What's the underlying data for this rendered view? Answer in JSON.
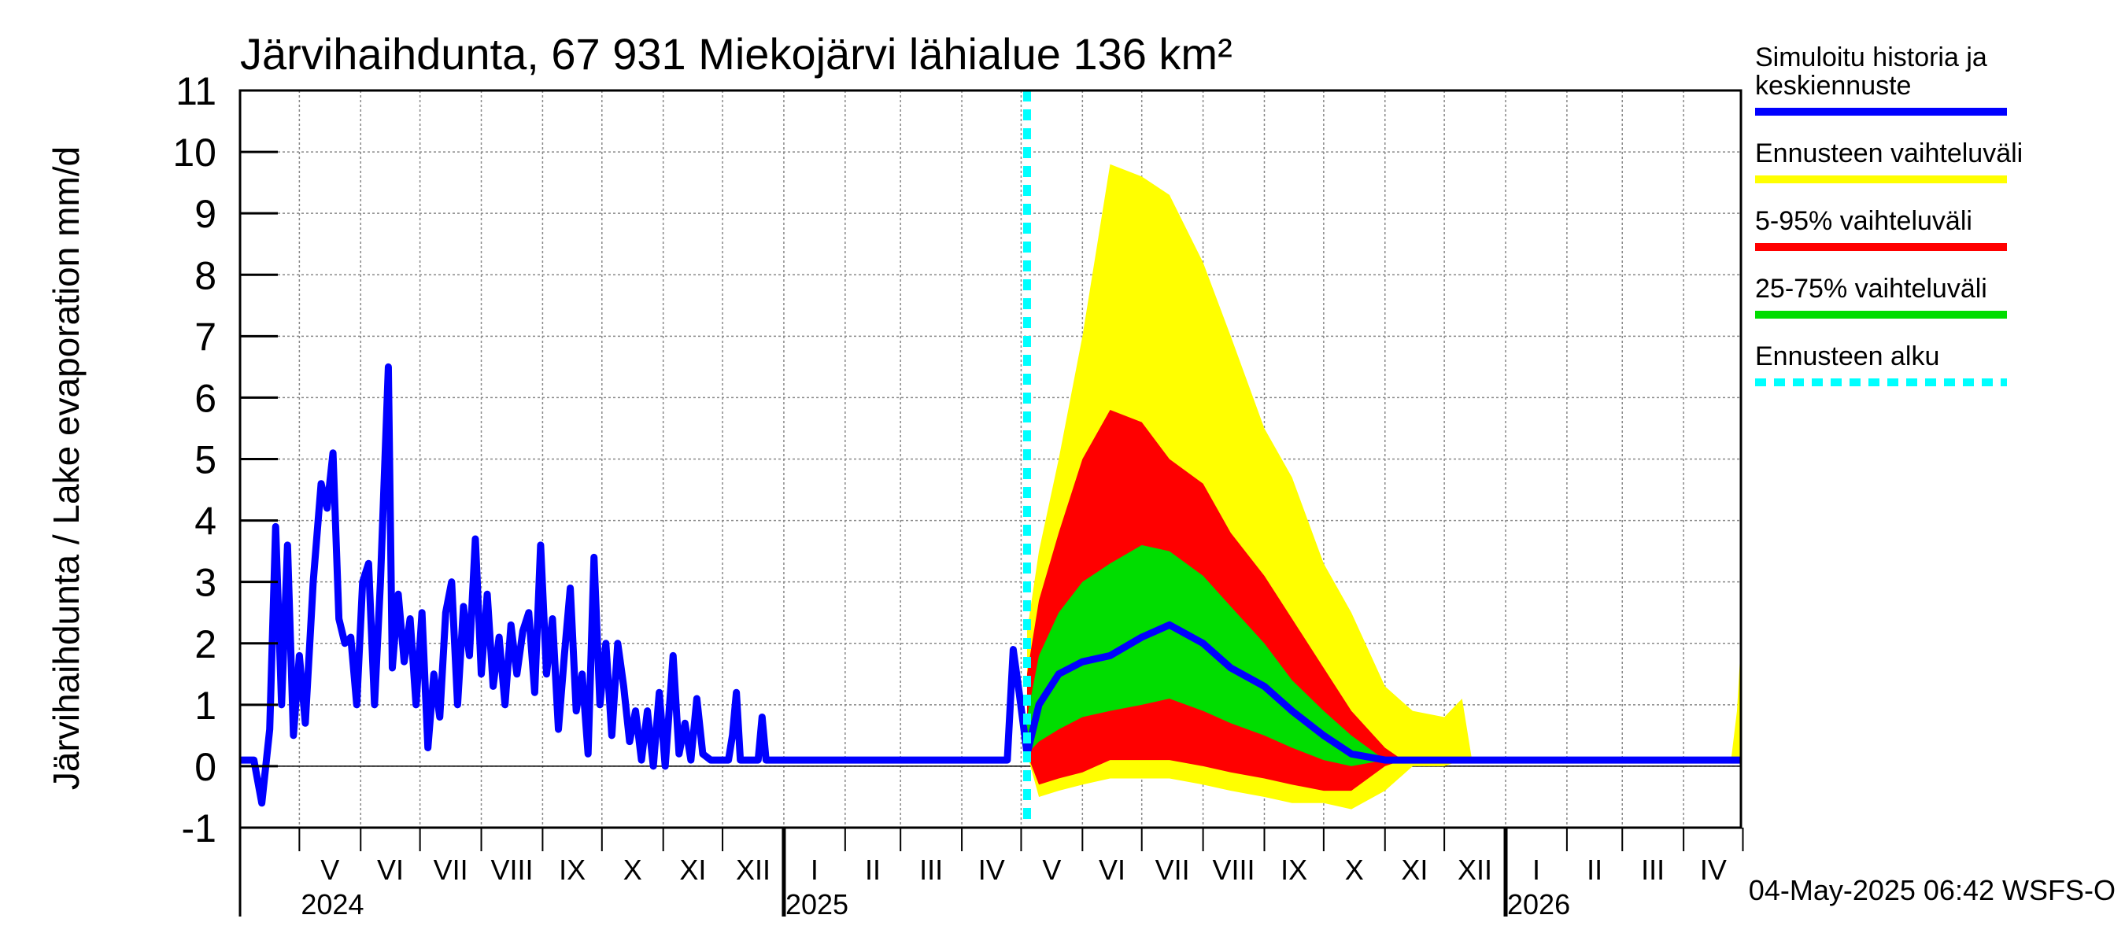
{
  "chart_data": {
    "type": "area",
    "title": "Järvihaihdunta, 67 931 Miekojärvi lähialue 136 km²",
    "ylabel": "Järvihaihdunta / Lake evaporation   mm/d",
    "ylim": [
      -1,
      11
    ],
    "yticks": [
      -1,
      0,
      1,
      2,
      3,
      4,
      5,
      6,
      7,
      8,
      9,
      10,
      11
    ],
    "grid": true,
    "legend_position": "right",
    "x_start": "2024-04-01",
    "x_end": "2026-04-30",
    "forecast_start": "2025-05-04",
    "month_labels": [
      {
        "label": "V",
        "month": "2024-05"
      },
      {
        "label": "VI",
        "month": "2024-06"
      },
      {
        "label": "VII",
        "month": "2024-07"
      },
      {
        "label": "VIII",
        "month": "2024-08"
      },
      {
        "label": "IX",
        "month": "2024-09"
      },
      {
        "label": "X",
        "month": "2024-10"
      },
      {
        "label": "XI",
        "month": "2024-11"
      },
      {
        "label": "XII",
        "month": "2024-12"
      },
      {
        "label": "I",
        "month": "2025-01"
      },
      {
        "label": "II",
        "month": "2025-02"
      },
      {
        "label": "III",
        "month": "2025-03"
      },
      {
        "label": "IV",
        "month": "2025-04"
      },
      {
        "label": "V",
        "month": "2025-05"
      },
      {
        "label": "VI",
        "month": "2025-06"
      },
      {
        "label": "VII",
        "month": "2025-07"
      },
      {
        "label": "VIII",
        "month": "2025-08"
      },
      {
        "label": "IX",
        "month": "2025-09"
      },
      {
        "label": "X",
        "month": "2025-10"
      },
      {
        "label": "XI",
        "month": "2025-11"
      },
      {
        "label": "XII",
        "month": "2025-12"
      },
      {
        "label": "I",
        "month": "2026-01"
      },
      {
        "label": "II",
        "month": "2026-02"
      },
      {
        "label": "III",
        "month": "2026-03"
      },
      {
        "label": "IV",
        "month": "2026-04"
      }
    ],
    "year_labels": [
      {
        "label": "2024",
        "date": "2024-05-01"
      },
      {
        "label": "2025",
        "date": "2025-01-01"
      },
      {
        "label": "2026",
        "date": "2026-01-01"
      }
    ],
    "series": [
      {
        "name": "Simuloitu historia ja keskiennuste",
        "color": "#0000ff",
        "points": [
          [
            "2024-04-01",
            0.1
          ],
          [
            "2024-04-08",
            0.1
          ],
          [
            "2024-04-12",
            -0.6
          ],
          [
            "2024-04-16",
            0.6
          ],
          [
            "2024-04-19",
            3.9
          ],
          [
            "2024-04-22",
            1.0
          ],
          [
            "2024-04-25",
            3.6
          ],
          [
            "2024-04-28",
            0.5
          ],
          [
            "2024-05-01",
            1.8
          ],
          [
            "2024-05-04",
            0.7
          ],
          [
            "2024-05-08",
            3.0
          ],
          [
            "2024-05-12",
            4.6
          ],
          [
            "2024-05-15",
            4.2
          ],
          [
            "2024-05-18",
            5.1
          ],
          [
            "2024-05-21",
            2.4
          ],
          [
            "2024-05-24",
            2.0
          ],
          [
            "2024-05-27",
            2.1
          ],
          [
            "2024-05-30",
            1.0
          ],
          [
            "2024-06-02",
            3.0
          ],
          [
            "2024-06-05",
            3.3
          ],
          [
            "2024-06-08",
            1.0
          ],
          [
            "2024-06-11",
            3.0
          ],
          [
            "2024-06-15",
            6.5
          ],
          [
            "2024-06-17",
            1.6
          ],
          [
            "2024-06-20",
            2.8
          ],
          [
            "2024-06-23",
            1.7
          ],
          [
            "2024-06-26",
            2.4
          ],
          [
            "2024-06-29",
            1.0
          ],
          [
            "2024-07-02",
            2.5
          ],
          [
            "2024-07-05",
            0.3
          ],
          [
            "2024-07-08",
            1.5
          ],
          [
            "2024-07-11",
            0.8
          ],
          [
            "2024-07-14",
            2.5
          ],
          [
            "2024-07-17",
            3.0
          ],
          [
            "2024-07-20",
            1.0
          ],
          [
            "2024-07-23",
            2.6
          ],
          [
            "2024-07-26",
            1.8
          ],
          [
            "2024-07-29",
            3.7
          ],
          [
            "2024-08-01",
            1.5
          ],
          [
            "2024-08-04",
            2.8
          ],
          [
            "2024-08-07",
            1.3
          ],
          [
            "2024-08-10",
            2.1
          ],
          [
            "2024-08-13",
            1.0
          ],
          [
            "2024-08-16",
            2.3
          ],
          [
            "2024-08-19",
            1.5
          ],
          [
            "2024-08-22",
            2.2
          ],
          [
            "2024-08-25",
            2.5
          ],
          [
            "2024-08-28",
            1.2
          ],
          [
            "2024-08-31",
            3.6
          ],
          [
            "2024-09-03",
            1.5
          ],
          [
            "2024-09-06",
            2.4
          ],
          [
            "2024-09-09",
            0.6
          ],
          [
            "2024-09-12",
            1.8
          ],
          [
            "2024-09-15",
            2.9
          ],
          [
            "2024-09-18",
            0.9
          ],
          [
            "2024-09-21",
            1.5
          ],
          [
            "2024-09-24",
            0.2
          ],
          [
            "2024-09-27",
            3.4
          ],
          [
            "2024-09-30",
            1.0
          ],
          [
            "2024-10-03",
            2.0
          ],
          [
            "2024-10-06",
            0.5
          ],
          [
            "2024-10-09",
            2.0
          ],
          [
            "2024-10-12",
            1.3
          ],
          [
            "2024-10-15",
            0.4
          ],
          [
            "2024-10-18",
            0.9
          ],
          [
            "2024-10-21",
            0.1
          ],
          [
            "2024-10-24",
            0.9
          ],
          [
            "2024-10-27",
            0.0
          ],
          [
            "2024-10-30",
            1.2
          ],
          [
            "2024-11-02",
            0.0
          ],
          [
            "2024-11-06",
            1.8
          ],
          [
            "2024-11-09",
            0.2
          ],
          [
            "2024-11-12",
            0.7
          ],
          [
            "2024-11-15",
            0.1
          ],
          [
            "2024-11-18",
            1.1
          ],
          [
            "2024-11-21",
            0.2
          ],
          [
            "2024-11-25",
            0.1
          ],
          [
            "2024-12-04",
            0.1
          ],
          [
            "2024-12-06",
            0.5
          ],
          [
            "2024-12-08",
            1.2
          ],
          [
            "2024-12-10",
            0.1
          ],
          [
            "2024-12-19",
            0.1
          ],
          [
            "2024-12-21",
            0.8
          ],
          [
            "2024-12-23",
            0.1
          ],
          [
            "2025-04-24",
            0.1
          ],
          [
            "2025-04-27",
            1.9
          ],
          [
            "2025-04-30",
            1.2
          ],
          [
            "2025-05-04",
            0.2
          ],
          [
            "2025-05-10",
            1.0
          ],
          [
            "2025-05-20",
            1.5
          ],
          [
            "2025-06-01",
            1.7
          ],
          [
            "2025-06-15",
            1.8
          ],
          [
            "2025-07-01",
            2.1
          ],
          [
            "2025-07-15",
            2.3
          ],
          [
            "2025-08-01",
            2.0
          ],
          [
            "2025-08-15",
            1.6
          ],
          [
            "2025-09-01",
            1.3
          ],
          [
            "2025-09-15",
            0.9
          ],
          [
            "2025-10-01",
            0.5
          ],
          [
            "2025-10-15",
            0.2
          ],
          [
            "2025-11-01",
            0.1
          ],
          [
            "2026-04-30",
            0.1
          ]
        ]
      },
      {
        "name": "Ennusteen vaihteluväli",
        "color": "#ffff00",
        "band": [
          [
            "2025-05-04",
            0.2,
            2.2
          ],
          [
            "2025-05-10",
            -0.5,
            3.5
          ],
          [
            "2025-05-20",
            -0.4,
            5.0
          ],
          [
            "2025-06-01",
            -0.3,
            7.0
          ],
          [
            "2025-06-15",
            -0.2,
            9.8
          ],
          [
            "2025-07-01",
            -0.2,
            9.6
          ],
          [
            "2025-07-15",
            -0.2,
            9.3
          ],
          [
            "2025-08-01",
            -0.3,
            8.2
          ],
          [
            "2025-08-15",
            -0.4,
            7.0
          ],
          [
            "2025-09-01",
            -0.5,
            5.5
          ],
          [
            "2025-09-15",
            -0.6,
            4.7
          ],
          [
            "2025-10-01",
            -0.6,
            3.3
          ],
          [
            "2025-10-15",
            -0.7,
            2.5
          ],
          [
            "2025-11-01",
            -0.4,
            1.3
          ],
          [
            "2025-11-15",
            0.0,
            0.9
          ],
          [
            "2025-12-01",
            0.0,
            0.8
          ],
          [
            "2025-12-10",
            0.1,
            1.1
          ],
          [
            "2025-12-15",
            0.1,
            0.1
          ],
          [
            "2026-04-25",
            0.1,
            0.1
          ],
          [
            "2026-04-28",
            0.1,
            0.9
          ],
          [
            "2026-04-30",
            0.1,
            2.0
          ]
        ]
      },
      {
        "name": "5-95% vaihteluväli",
        "color": "#ff0000",
        "band": [
          [
            "2025-05-04",
            0.2,
            1.5
          ],
          [
            "2025-05-10",
            -0.3,
            2.7
          ],
          [
            "2025-05-20",
            -0.2,
            3.8
          ],
          [
            "2025-06-01",
            -0.1,
            5.0
          ],
          [
            "2025-06-15",
            0.1,
            5.8
          ],
          [
            "2025-07-01",
            0.1,
            5.6
          ],
          [
            "2025-07-15",
            0.1,
            5.0
          ],
          [
            "2025-08-01",
            0.0,
            4.6
          ],
          [
            "2025-08-15",
            -0.1,
            3.8
          ],
          [
            "2025-09-01",
            -0.2,
            3.1
          ],
          [
            "2025-09-15",
            -0.3,
            2.4
          ],
          [
            "2025-10-01",
            -0.4,
            1.6
          ],
          [
            "2025-10-15",
            -0.4,
            0.9
          ],
          [
            "2025-11-01",
            0.0,
            0.3
          ],
          [
            "2025-11-10",
            0.1,
            0.1
          ]
        ]
      },
      {
        "name": "25-75% vaihteluväli",
        "color": "#00dd00",
        "band": [
          [
            "2025-05-04",
            0.2,
            0.8
          ],
          [
            "2025-05-10",
            0.4,
            1.8
          ],
          [
            "2025-05-20",
            0.6,
            2.5
          ],
          [
            "2025-06-01",
            0.8,
            3.0
          ],
          [
            "2025-06-15",
            0.9,
            3.3
          ],
          [
            "2025-07-01",
            1.0,
            3.6
          ],
          [
            "2025-07-15",
            1.1,
            3.5
          ],
          [
            "2025-08-01",
            0.9,
            3.1
          ],
          [
            "2025-08-15",
            0.7,
            2.6
          ],
          [
            "2025-09-01",
            0.5,
            2.0
          ],
          [
            "2025-09-15",
            0.3,
            1.4
          ],
          [
            "2025-10-01",
            0.1,
            0.9
          ],
          [
            "2025-10-15",
            0.0,
            0.5
          ],
          [
            "2025-11-01",
            0.1,
            0.1
          ]
        ]
      }
    ],
    "legend": [
      {
        "name": "Simuloitu historia ja keskiennuste",
        "lines": [
          "Simuloitu historia ja",
          "keskiennuste"
        ],
        "color": "#0000ff",
        "style": "solid"
      },
      {
        "name": "Ennusteen vaihteluväli",
        "lines": [
          "Ennusteen vaihteluväli"
        ],
        "color": "#ffff00",
        "style": "solid"
      },
      {
        "name": "5-95% vaihteluväli",
        "lines": [
          "5-95% vaihteluväli"
        ],
        "color": "#ff0000",
        "style": "solid"
      },
      {
        "name": "25-75% vaihteluväli",
        "lines": [
          "25-75% vaihteluväli"
        ],
        "color": "#00dd00",
        "style": "solid"
      },
      {
        "name": "Ennusteen alku",
        "lines": [
          "Ennusteen alku"
        ],
        "color": "#00ffff",
        "style": "dashed"
      }
    ],
    "footer": "04-May-2025 06:42 WSFS-O"
  }
}
